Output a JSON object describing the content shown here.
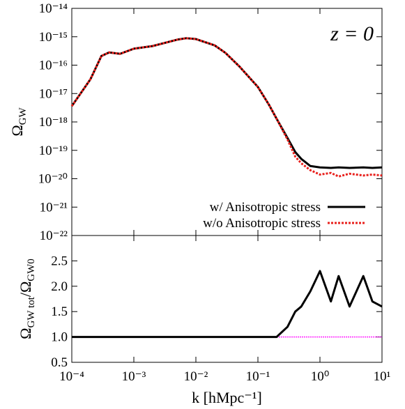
{
  "chart_data": [
    {
      "type": "line",
      "log_y": true,
      "annotation": "z = 0",
      "ylabel": [
        "Ω",
        "GW"
      ],
      "xlim": [
        0.0001,
        10
      ],
      "ylim": [
        1e-22,
        1e-14
      ],
      "yticks": [
        {
          "value": 1e-14,
          "label": "10⁻¹⁴"
        },
        {
          "value": 1e-15,
          "label": "10⁻¹⁵"
        },
        {
          "value": 1e-16,
          "label": "10⁻¹⁶"
        },
        {
          "value": 1e-17,
          "label": "10⁻¹⁷"
        },
        {
          "value": 1e-18,
          "label": "10⁻¹⁸"
        },
        {
          "value": 1e-19,
          "label": "10⁻¹⁹"
        },
        {
          "value": 1e-20,
          "label": "10⁻²⁰"
        },
        {
          "value": 1e-21,
          "label": "10⁻²¹"
        },
        {
          "value": 1e-22,
          "label": "10⁻²²"
        }
      ],
      "legend": "lower right",
      "x": [
        0.0001,
        0.0002,
        0.0003,
        0.0004,
        0.0006,
        0.001,
        0.002,
        0.003,
        0.005,
        0.007,
        0.01,
        0.02,
        0.03,
        0.05,
        0.1,
        0.15,
        0.2,
        0.3,
        0.4,
        0.5,
        0.7,
        1,
        1.5,
        2,
        3,
        5,
        7,
        10
      ],
      "series": [
        {
          "name": "w/ Anisotropic stress",
          "color": "#000000",
          "dash": false,
          "values": [
            3.6e-18,
            3.2e-17,
            2.1e-16,
            2.8e-16,
            2.5e-16,
            3.8e-16,
            4.7e-16,
            5.9e-16,
            7.9e-16,
            8.9e-16,
            8.3e-16,
            5e-16,
            2.7e-16,
            9.1e-17,
            1.7e-17,
            4.1e-18,
            1.3e-18,
            2.7e-19,
            8.7e-20,
            5e-20,
            2.8e-20,
            2.5e-20,
            2.4e-20,
            2.5e-20,
            2.4e-20,
            2.5e-20,
            2.4e-20,
            2.5e-20
          ]
        },
        {
          "name": "w/o Anisotropic stress",
          "color": "#e8201c",
          "dash": true,
          "values": [
            3.6e-18,
            3.2e-17,
            2.1e-16,
            2.8e-16,
            2.5e-16,
            3.8e-16,
            4.7e-16,
            5.9e-16,
            7.9e-16,
            8.9e-16,
            8.3e-16,
            5e-16,
            2.7e-16,
            9.1e-17,
            1.7e-17,
            4.1e-18,
            1.3e-18,
            2.4e-19,
            6e-20,
            3.5e-20,
            2e-20,
            1.4e-20,
            1.6e-20,
            1.2e-20,
            1.5e-20,
            1.3e-20,
            1.4e-20,
            1.3e-20
          ]
        }
      ]
    },
    {
      "type": "line",
      "log_y": false,
      "ylabel": [
        "Ω",
        "GW tot",
        "/Ω",
        "GW0"
      ],
      "xlabel": "k [hMpc⁻¹]",
      "xlim": [
        0.0001,
        10
      ],
      "xticks": [
        {
          "value": 0.0001,
          "label": "10⁻⁴"
        },
        {
          "value": 0.001,
          "label": "10⁻³"
        },
        {
          "value": 0.01,
          "label": "10⁻²"
        },
        {
          "value": 0.1,
          "label": "10⁻¹"
        },
        {
          "value": 1,
          "label": "10⁰"
        },
        {
          "value": 10,
          "label": "10¹"
        }
      ],
      "ylim": [
        0.5,
        3.0
      ],
      "yticks": [
        {
          "value": 0.5,
          "label": "0.5"
        },
        {
          "value": 1.0,
          "label": "1.0"
        },
        {
          "value": 1.5,
          "label": "1.5"
        },
        {
          "value": 2.0,
          "label": "2.0"
        },
        {
          "value": 2.5,
          "label": "2.5"
        }
      ],
      "reference_line": {
        "value": 1,
        "color": "#ff00ff"
      },
      "x": [
        0.0001,
        0.001,
        0.01,
        0.1,
        0.2,
        0.3,
        0.4,
        0.5,
        0.7,
        1,
        1.5,
        2,
        3,
        5,
        7,
        10
      ],
      "series": [
        {
          "color": "#000000",
          "dash": false,
          "values": [
            1.0,
            1.0,
            1.0,
            1.0,
            1.0,
            1.2,
            1.5,
            1.6,
            1.9,
            2.3,
            1.7,
            2.2,
            1.6,
            2.2,
            1.7,
            1.6
          ]
        }
      ]
    }
  ]
}
